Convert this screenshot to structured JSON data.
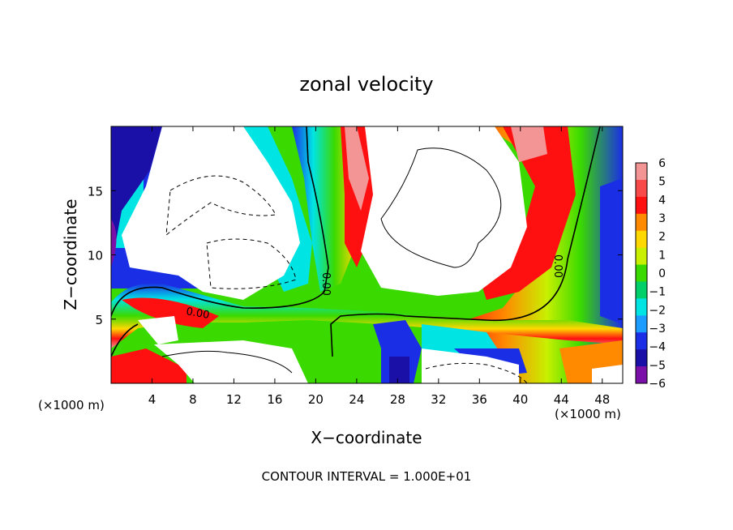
{
  "chart_data": {
    "type": "heatmap",
    "title": "zonal velocity",
    "xlabel": "X−coordinate",
    "ylabel": "Z−coordinate",
    "x_unit_label": "(×1000 m)",
    "z_unit_label": "(×1000 m)",
    "footer": "CONTOUR INTERVAL = 1.000E+01",
    "xlim": [
      0,
      50
    ],
    "ylim": [
      0,
      20
    ],
    "x_ticks": [
      "4",
      "8",
      "12",
      "16",
      "20",
      "24",
      "28",
      "32",
      "36",
      "40",
      "44",
      "48"
    ],
    "y_ticks": [
      "5",
      "10",
      "15"
    ],
    "contour_labels": [
      "0.00",
      "0.00",
      "0.00"
    ],
    "colorbar": {
      "labels": [
        "6",
        "5",
        "4",
        "3",
        "2",
        "1",
        "0",
        "−1",
        "−2",
        "−3",
        "−4",
        "−5",
        "−6"
      ],
      "colors": [
        "#f49595",
        "#f94a4a",
        "#ff1010",
        "#ff8a00",
        "#ffd800",
        "#c8f000",
        "#3ada00",
        "#00cf6a",
        "#00e4e4",
        "#1d9cff",
        "#1a2ee6",
        "#1a10a8",
        "#7a10a8"
      ]
    },
    "grid": false,
    "grid_rows": [
      "WWWWWWWWWWWW",
      "WWWWWWWWWWWW",
      "WWWWWWWWWWWW",
      "WWWWWWWWWWWW",
      "WWWWWWWWWWWW"
    ]
  }
}
